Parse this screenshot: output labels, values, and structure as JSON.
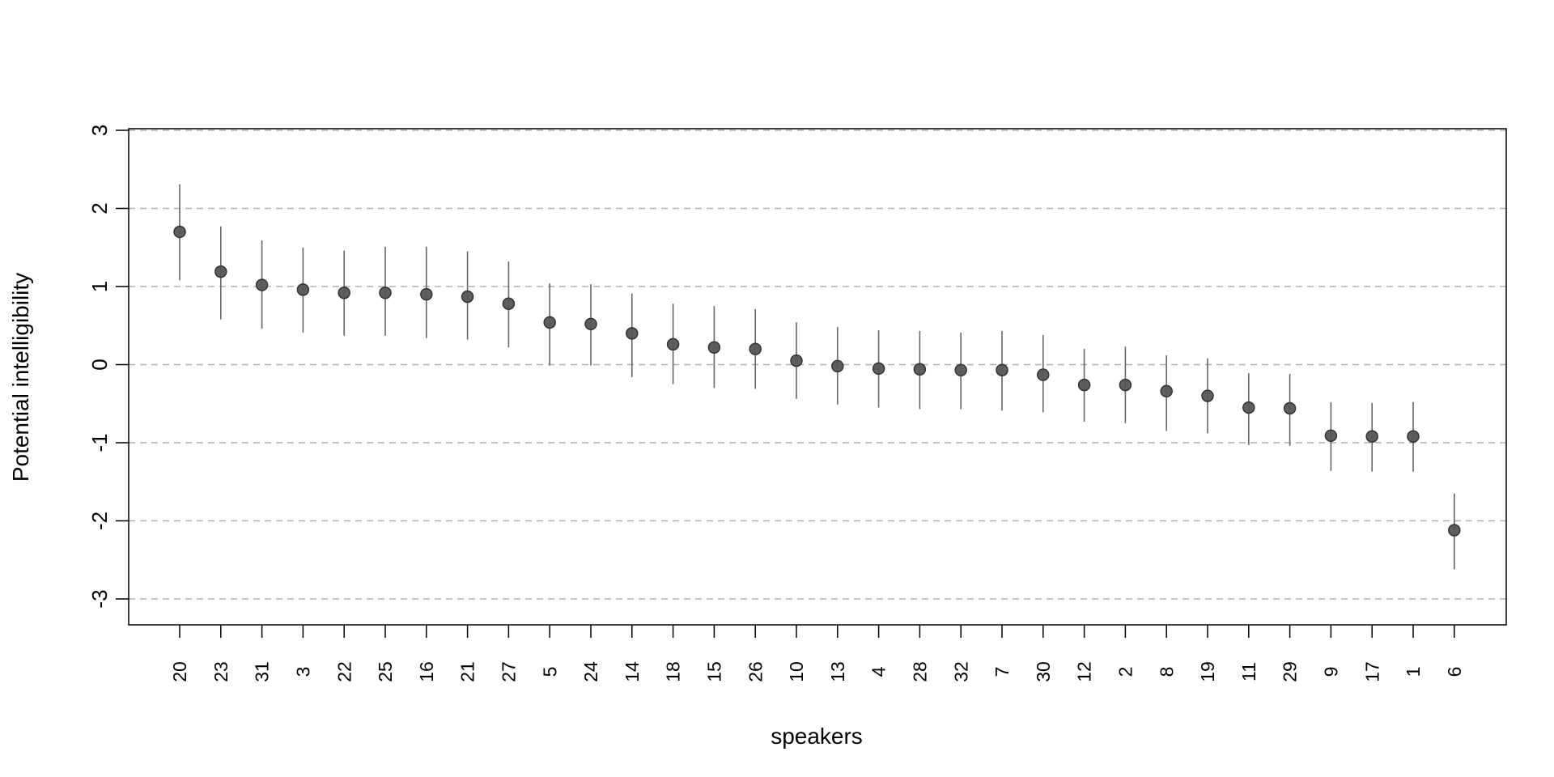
{
  "chart_data": {
    "type": "scatter",
    "title": "",
    "xlabel": "speakers",
    "ylabel": "Potential intelligibility",
    "ylim": [
      -3.35,
      3.0
    ],
    "yticks": [
      -3,
      -2,
      -1,
      0,
      1,
      2,
      3
    ],
    "grid": "horizontal dashed at each y tick",
    "legend": "none",
    "point_color": "#555555",
    "errorbar_color": "#666666",
    "grid_color": "#b0b0b0",
    "categories": [
      "20",
      "23",
      "31",
      "3",
      "22",
      "25",
      "16",
      "21",
      "27",
      "5",
      "24",
      "14",
      "18",
      "15",
      "26",
      "10",
      "13",
      "4",
      "28",
      "32",
      "7",
      "30",
      "12",
      "2",
      "8",
      "19",
      "11",
      "29",
      "9",
      "17",
      "1",
      "6"
    ],
    "values": [
      1.7,
      1.19,
      1.02,
      0.96,
      0.92,
      0.92,
      0.9,
      0.87,
      0.78,
      0.54,
      0.52,
      0.4,
      0.26,
      0.22,
      0.2,
      0.05,
      -0.02,
      -0.05,
      -0.06,
      -0.07,
      -0.07,
      -0.13,
      -0.26,
      -0.26,
      -0.34,
      -0.4,
      -0.55,
      -0.56,
      -0.91,
      -0.92,
      -0.92,
      -2.12
    ],
    "lower": [
      1.08,
      0.58,
      0.46,
      0.41,
      0.37,
      0.37,
      0.34,
      0.32,
      0.22,
      -0.01,
      -0.01,
      -0.16,
      -0.25,
      -0.3,
      -0.31,
      -0.44,
      -0.51,
      -0.55,
      -0.57,
      -0.57,
      -0.59,
      -0.61,
      -0.73,
      -0.75,
      -0.85,
      -0.88,
      -1.03,
      -1.04,
      -1.36,
      -1.37,
      -1.37,
      -2.62
    ],
    "upper": [
      2.31,
      1.77,
      1.59,
      1.5,
      1.46,
      1.51,
      1.51,
      1.45,
      1.32,
      1.04,
      1.03,
      0.91,
      0.78,
      0.75,
      0.71,
      0.54,
      0.48,
      0.44,
      0.43,
      0.41,
      0.43,
      0.38,
      0.2,
      0.23,
      0.12,
      0.08,
      -0.11,
      -0.12,
      -0.48,
      -0.49,
      -0.48,
      -1.65
    ]
  }
}
